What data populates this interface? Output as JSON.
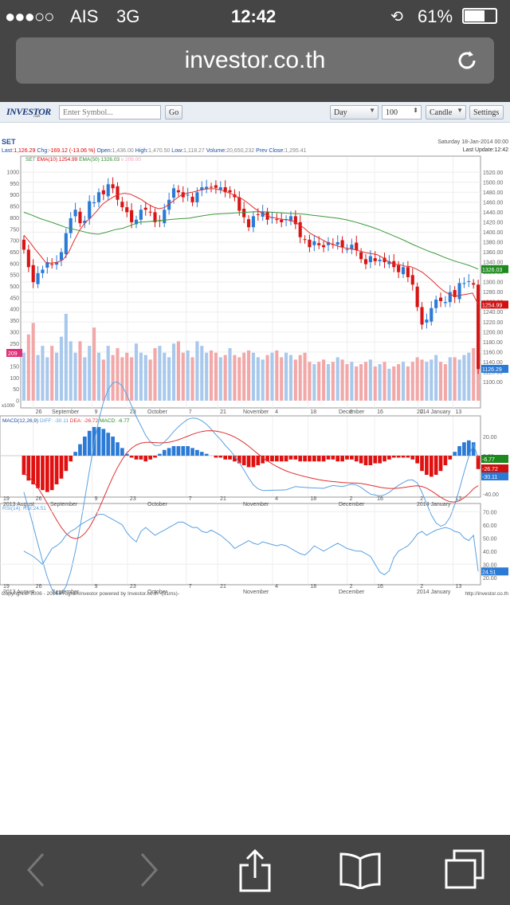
{
  "status": {
    "signal": "●●●○○",
    "carrier": "AIS",
    "network": "3G",
    "time": "12:42",
    "battery": "61%"
  },
  "browser": {
    "url": "investor.co.th"
  },
  "toolbar": {
    "logo": "INVESTOR",
    "logo_sub": "co.th",
    "symbol_placeholder": "Enter Symbol...",
    "go": "Go",
    "period": "Day",
    "count": "100",
    "chart_type": "Candle",
    "settings": "Settings"
  },
  "header": {
    "symbol": "SET",
    "date": "Saturday 18-Jan-2014 00:00",
    "last_label": "Last:",
    "last": "1,126.29",
    "chg_label": "Chg:",
    "chg": "-169.12 (-13.06 %)",
    "open_label": "Open:",
    "open": "1,436.00",
    "high_label": "High:",
    "high": "1,470.50",
    "low_label": "Low:",
    "low": "1,118.27",
    "volume_label": "Volume:",
    "volume": "20,650,232",
    "prevclose_label": "Prev Close:",
    "prevclose": "1,295.41",
    "lastupdate": "Last Update:12:42"
  },
  "legend": {
    "set": "SET",
    "ema10": "EMA(10) 1254.99",
    "ema50": "EMA(50) 1326.03",
    "vol": "v 209.00"
  },
  "macd_legend": {
    "macd": "MACD(12,26,9)",
    "diff": "DIFF: -30.11",
    "dea": "DEA: -26.72",
    "macd_val": "MACD: -6.77"
  },
  "rsi_legend": "RSI(14): RSI:24.51",
  "footer": {
    "copyright": "Copyright © 2006 - 2014 ProgramInvestor powered by Investor.co.th -(31ms)-",
    "site": "http://investor.co.th"
  },
  "chart_data": [
    {
      "type": "candlestick",
      "title": "SET",
      "ylim": [
        1080,
        1530
      ],
      "yticks": [
        1100,
        1120,
        1140,
        1160,
        1180,
        1200,
        1220,
        1240,
        1260,
        1280,
        1300,
        1320,
        1340,
        1360,
        1380,
        1400,
        1420,
        1440,
        1460,
        1480,
        1500,
        1520
      ],
      "left_ticks": [
        0,
        50,
        100,
        150,
        200,
        250,
        300,
        350,
        400,
        450,
        500,
        550,
        600,
        650,
        700,
        750,
        800,
        850,
        900,
        950,
        1000
      ],
      "x_ticks": [
        "26",
        "9",
        "23",
        "7",
        "21",
        "4",
        "18",
        "2",
        "16",
        "2",
        "13"
      ],
      "months": [
        "September",
        "October",
        "November",
        "December",
        "2014 January"
      ],
      "year_month": "2013 August",
      "x_first": "19",
      "markers": {
        "ema10": "1254.99",
        "ema50": "1326.03",
        "last": "1126.29",
        "volume": "209"
      },
      "vol_unit": "x1000",
      "closes": [
        1365,
        1330,
        1300,
        1318,
        1325,
        1340,
        1335,
        1340,
        1360,
        1398,
        1428,
        1445,
        1418,
        1423,
        1462,
        1460,
        1480,
        1476,
        1496,
        1488,
        1465,
        1450,
        1440,
        1420,
        1425,
        1445,
        1445,
        1440,
        1420,
        1422,
        1445,
        1465,
        1488,
        1480,
        1470,
        1475,
        1460,
        1480,
        1490,
        1491,
        1490,
        1489,
        1490,
        1480,
        1480,
        1470,
        1443,
        1430,
        1410,
        1432,
        1435,
        1441,
        1425,
        1430,
        1425,
        1420,
        1426,
        1432,
        1416,
        1390,
        1385,
        1370,
        1382,
        1374,
        1370,
        1380,
        1375,
        1380,
        1370,
        1366,
        1375,
        1364,
        1346,
        1336,
        1352,
        1342,
        1345,
        1340,
        1342,
        1330,
        1320,
        1330,
        1310,
        1295,
        1250,
        1215,
        1225,
        1248,
        1265,
        1262,
        1260,
        1280,
        1270,
        1298,
        1298,
        1302,
        1295,
        1126
      ],
      "ema10": [
        1394,
        1381,
        1366,
        1352,
        1338,
        1338,
        1340,
        1345,
        1360,
        1384,
        1405,
        1420,
        1430,
        1442,
        1456,
        1464,
        1471,
        1476,
        1478,
        1476,
        1471,
        1465,
        1457,
        1451,
        1447,
        1449,
        1457,
        1466,
        1474,
        1478,
        1480,
        1483,
        1486,
        1487,
        1487,
        1485,
        1481,
        1477,
        1471,
        1466,
        1458,
        1449,
        1441,
        1436,
        1430,
        1428,
        1426,
        1425,
        1422,
        1416,
        1408,
        1398,
        1392,
        1386,
        1380,
        1376,
        1372,
        1369,
        1367,
        1365,
        1362,
        1359,
        1357,
        1355,
        1349,
        1341,
        1336,
        1335,
        1332,
        1331,
        1326,
        1320,
        1311,
        1301,
        1290,
        1281,
        1275,
        1272,
        1274,
        1276,
        1278,
        1255
      ],
      "ema50": [
        1440,
        1434,
        1427,
        1422,
        1416,
        1410,
        1406,
        1402,
        1398,
        1396,
        1400,
        1405,
        1408,
        1414,
        1420,
        1421,
        1423,
        1424,
        1426,
        1427,
        1428,
        1431,
        1434,
        1436,
        1437,
        1438,
        1439,
        1440,
        1441,
        1441,
        1440,
        1439,
        1438,
        1437,
        1436,
        1434,
        1432,
        1430,
        1428,
        1425,
        1421,
        1416,
        1411,
        1405,
        1398,
        1391,
        1384,
        1376,
        1369,
        1362,
        1356,
        1349,
        1343,
        1338,
        1333,
        1326
      ],
      "volume": [
        210,
        290,
        340,
        200,
        240,
        190,
        240,
        210,
        280,
        380,
        260,
        210,
        260,
        190,
        240,
        320,
        210,
        180,
        240,
        200,
        230,
        190,
        210,
        190,
        250,
        210,
        200,
        180,
        230,
        240,
        210,
        190,
        250,
        260,
        210,
        220,
        190,
        260,
        240,
        210,
        220,
        210,
        190,
        200,
        230,
        200,
        190,
        210,
        220,
        210,
        190,
        180,
        200,
        210,
        220,
        190,
        210,
        200,
        180,
        200,
        210,
        170,
        160,
        170,
        180,
        160,
        170,
        190,
        180,
        160,
        170,
        150,
        160,
        170,
        180,
        150,
        160,
        170,
        140,
        150,
        160,
        170,
        150,
        170,
        190,
        180,
        170,
        180,
        200,
        170,
        160,
        190,
        190,
        180,
        200,
        210,
        230,
        209
      ]
    },
    {
      "type": "bar",
      "title": "MACD(12,26,9)",
      "yticks": [
        20,
        0,
        -20,
        -40
      ],
      "diff": "-30.11",
      "dea": "-26.72",
      "macd": "-6.77",
      "hist": [
        -10,
        -13,
        -15,
        -17,
        -18,
        -19,
        -18,
        -15,
        -12,
        -8,
        -3,
        2,
        6,
        10,
        13,
        15,
        15,
        14,
        12,
        10,
        7,
        4,
        1,
        -1,
        -2,
        -2,
        -3,
        -2,
        -1,
        1,
        3,
        4,
        5,
        5,
        5,
        5,
        4,
        3,
        2,
        1,
        0,
        -1,
        -1,
        -2,
        -2,
        -3,
        -4,
        -5,
        -6,
        -6,
        -5,
        -4,
        -3,
        -3,
        -3,
        -3,
        -3,
        -2,
        -2,
        -3,
        -3,
        -3,
        -3,
        -3,
        -3,
        -2,
        -2,
        -3,
        -3,
        -2,
        -2,
        -3,
        -4,
        -5,
        -5,
        -4,
        -4,
        -3,
        -2,
        -1,
        -1,
        -1,
        -1,
        -2,
        -4,
        -8,
        -10,
        -11,
        -10,
        -8,
        -5,
        -2,
        2,
        5,
        7,
        8,
        7,
        -7
      ]
    },
    {
      "type": "line",
      "title": "RSI(14)",
      "yticks": [
        70,
        60,
        50,
        40,
        30,
        20
      ],
      "last": "24.51",
      "values": [
        40,
        38,
        36,
        33,
        30,
        36,
        42,
        44,
        47,
        52,
        55,
        57,
        60,
        62,
        64,
        66,
        68,
        68,
        66,
        64,
        62,
        60,
        54,
        50,
        47,
        55,
        58,
        55,
        52,
        54,
        56,
        58,
        60,
        62,
        62,
        60,
        58,
        58,
        55,
        54,
        56,
        54,
        52,
        49,
        46,
        42,
        44,
        46,
        48,
        46,
        45,
        47,
        46,
        45,
        44,
        45,
        44,
        42,
        40,
        38,
        37,
        40,
        44,
        42,
        40,
        42,
        44,
        46,
        44,
        42,
        41,
        40,
        40,
        38,
        36,
        30,
        24,
        22,
        25,
        35,
        40,
        42,
        44,
        48,
        53,
        55,
        52,
        54,
        56,
        57,
        58,
        57,
        55,
        54,
        50,
        48,
        52,
        24.51
      ]
    }
  ]
}
